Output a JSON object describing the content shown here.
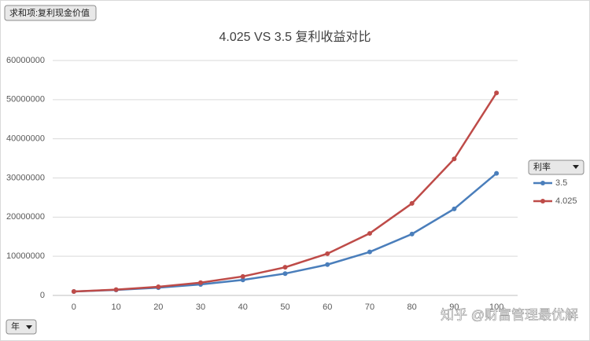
{
  "chart_data": {
    "type": "line",
    "title": "4.025 VS 3.5 复利收益对比",
    "value_field_button": "求和项:复利现金价值",
    "legend_title": "利率",
    "axis_field_button": "年",
    "watermark": "知乎 @财富管理最优解",
    "categories": [
      "0",
      "10",
      "20",
      "30",
      "40",
      "50",
      "60",
      "70",
      "80",
      "90",
      "100"
    ],
    "series": [
      {
        "name": "3.5",
        "color": "#4a7ebb",
        "values": [
          1000000,
          1410000,
          1990000,
          2810000,
          3960000,
          5580000,
          7880000,
          11110000,
          15680000,
          22110000,
          31190000
        ]
      },
      {
        "name": "4.025",
        "color": "#be4b48",
        "values": [
          1000000,
          1480000,
          2200000,
          3270000,
          4850000,
          7190000,
          10670000,
          15840000,
          23500000,
          34860000,
          51730000
        ]
      }
    ],
    "ylim": [
      0,
      60000000
    ],
    "yticks": [
      0,
      10000000,
      20000000,
      30000000,
      40000000,
      50000000,
      60000000
    ],
    "grid": true,
    "legend": "right"
  }
}
